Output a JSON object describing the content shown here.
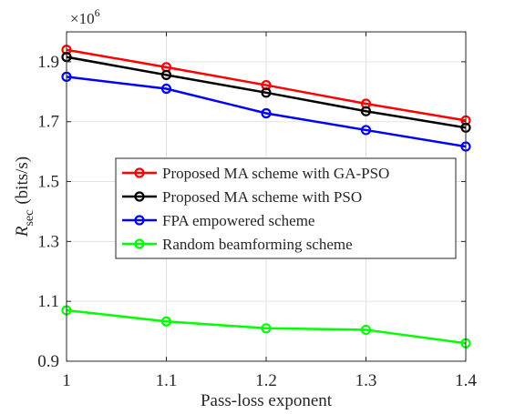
{
  "chart_data": {
    "type": "line",
    "xlabel": "Pass-loss exponent",
    "ylabel": "R",
    "ylabel_subscript": "sec",
    "ylabel_unit": "(bits/s)",
    "y_multiplier": "×10",
    "y_multiplier_exp": "6",
    "x": [
      1,
      1.1,
      1.2,
      1.3,
      1.4
    ],
    "xlim": [
      1,
      1.4
    ],
    "ylim": [
      0.9,
      2.0
    ],
    "xticks": [
      1,
      1.1,
      1.2,
      1.3,
      1.4
    ],
    "xtick_labels": [
      "1",
      "1.1",
      "1.2",
      "1.3",
      "1.4"
    ],
    "yticks": [
      0.9,
      1.1,
      1.3,
      1.5,
      1.7,
      1.9
    ],
    "ytick_labels": [
      "0.9",
      "1.1",
      "1.3",
      "1.5",
      "1.7",
      "1.9"
    ],
    "grid": true,
    "legend_position": "center",
    "series": [
      {
        "name": "Proposed MA scheme with GA-PSO",
        "color": "#ff0000",
        "values": [
          1.94,
          1.882,
          1.822,
          1.76,
          1.704
        ]
      },
      {
        "name": "Proposed MA scheme with PSO",
        "color": "#000000",
        "values": [
          1.916,
          1.856,
          1.797,
          1.735,
          1.68
        ]
      },
      {
        "name": "FPA empowered scheme",
        "color": "#0000ff",
        "values": [
          1.85,
          1.81,
          1.728,
          1.672,
          1.617
        ]
      },
      {
        "name": "Random beamforming scheme",
        "color": "#00ff00",
        "values": [
          1.07,
          1.033,
          1.01,
          1.005,
          0.96
        ]
      }
    ]
  }
}
